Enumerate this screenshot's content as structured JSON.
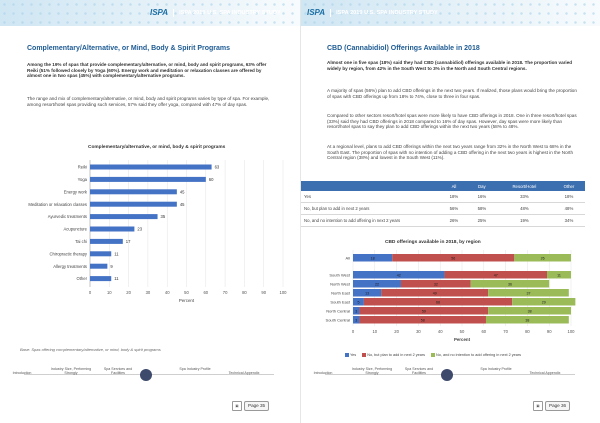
{
  "header": {
    "logo": "ISPA",
    "title": "ISPA 2019 U.S. SPA INDUSTRY STUDY"
  },
  "left": {
    "heading": "Complementary/Alternative, or Mind, Body & Spirit Programs",
    "intro": "Among the 19% of spas that provide complementary/alternative, or mind, body and spirit programs, 63% offer Reiki (51% followed closely by Yoga (60%). Energy work and meditation or relaxation classes are offered by almost one in two spas (45%) with complementary/alternative programs.",
    "body": "The range and mix of complementary/alternative, or mind, body and spirit programs varies by type of spa. For example, among resort/hotel spas providing such services, 57% said they offer yoga, compared with 47% of day spas.",
    "base_note": "Base: Spas offering complementary/alternative, or mind, body & spirit programs",
    "page_label": "Page 35"
  },
  "right": {
    "heading": "CBD (Cannabidiol) Offerings Available in 2018",
    "intro": "Almost one in five spas (18%) said they had CBD (cannabidiol) offerings available in 2018. The proportion varied widely by region, from 42% in the South West to 3% in the North and South Central regions.",
    "p1": "A majority of spas (56%) plan to add CBD offerings in the next two years. If realized, those plans would bring the proportion of spas with CBD offerings up from 18% to 74%, close to three in four spas.",
    "p2": "Compared to other sectors resort/hotel spas were more likely to have CBD offerings in 2018. One in three resort/hotel spas (33%) said they had CBD offerings in 2018 compared to 16% of day spas. However, day spas were more likely than resort/hotel spas to say they plan to add CBD offerings within the next two years (58% to 48%.",
    "p3": "At a regional level, plans to add CBD offerings within the next two years range from 32% in the North West to 68% in the South East. The proportion of spas with no intention of adding a CBD offering in the next two years is highest in the North Central region (38%) and lowest in the South West (11%).",
    "page_label": "Page 36",
    "table": {
      "headers": [
        "",
        "All",
        "Day",
        "Resort/Hotel",
        "Other"
      ],
      "rows": [
        [
          "Yes",
          "18%",
          "16%",
          "33%",
          "18%"
        ],
        [
          "No, but plan to add in next 2 years",
          "56%",
          "58%",
          "48%",
          "48%"
        ],
        [
          "No, and no intention to add offering in next 2 years",
          "26%",
          "25%",
          "19%",
          "34%"
        ]
      ]
    }
  },
  "nav": [
    "Introduction",
    "Industry Size, Performing Strongly",
    "Spa Services and Facilities",
    "Spa Industry Profile",
    "Technical Appendix"
  ],
  "colors": {
    "bar_blue": "#4472c4",
    "yes": "#4472c4",
    "plan": "#c0504d",
    "no": "#9bbb59",
    "heading": "#1d5b93"
  },
  "chart_data": [
    {
      "type": "bar",
      "orientation": "horizontal",
      "title": "Complementary/alternative, or mind, body & spirit programs",
      "xlabel": "Percent",
      "xlim": [
        0,
        100
      ],
      "xticks": [
        0,
        10,
        20,
        30,
        40,
        50,
        60,
        70,
        80,
        90,
        100
      ],
      "categories": [
        "Reiki",
        "Yoga",
        "Energy work",
        "Meditation or relaxation classes",
        "Ayurvedic treatments",
        "Acupuncture",
        "Tai chi",
        "Chiropractic therapy",
        "Allergy treatments",
        "Other"
      ],
      "values": [
        63,
        60,
        45,
        45,
        35,
        23,
        17,
        11,
        9,
        11
      ]
    },
    {
      "type": "bar",
      "orientation": "horizontal",
      "stacked": true,
      "title": "CBD offerings available in 2018, by region",
      "xlabel": "Percent",
      "xlim": [
        0,
        100
      ],
      "xticks": [
        0,
        10,
        20,
        30,
        40,
        50,
        60,
        70,
        80,
        90,
        100
      ],
      "categories": [
        "All",
        "South West",
        "North West",
        "North East",
        "South East",
        "North Central",
        "South Central"
      ],
      "series": [
        {
          "name": "Yes",
          "values": [
            18,
            42,
            22,
            13,
            5,
            3,
            3
          ]
        },
        {
          "name": "No, but plan to add in next 2 years",
          "values": [
            56,
            47,
            32,
            49,
            68,
            59,
            58
          ]
        },
        {
          "name": "No, and no intention to add offering in next 2 years",
          "values": [
            26,
            11,
            36,
            37,
            29,
            38,
            38
          ]
        }
      ],
      "legend_position": "bottom"
    }
  ]
}
